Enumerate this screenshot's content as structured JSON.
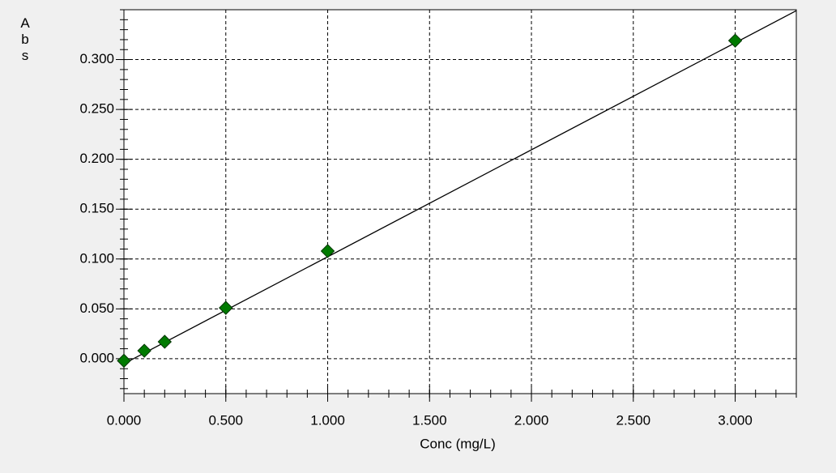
{
  "chart_data": {
    "type": "scatter",
    "x_label": "Conc (mg/L)",
    "y_label": "Abs",
    "x": [
      0,
      0.1,
      0.2,
      0.5,
      1.0,
      3.0
    ],
    "values": [
      -0.002,
      0.008,
      0.017,
      0.051,
      0.108,
      0.319
    ],
    "color": "#007a00",
    "fit_line": {
      "x": [
        0,
        3.3
      ],
      "values": [
        -0.005,
        0.349
      ],
      "color": "#000000"
    },
    "xlim": [
      0,
      3.3
    ],
    "ylim": [
      -0.035,
      0.35
    ],
    "xticks": [
      {
        "value": 0,
        "label": "0.000"
      },
      {
        "value": 0.5,
        "label": "0.500"
      },
      {
        "value": 1.0,
        "label": "1.000"
      },
      {
        "value": 1.5,
        "label": "1.500"
      },
      {
        "value": 2.0,
        "label": "2.000"
      },
      {
        "value": 2.5,
        "label": "2.500"
      },
      {
        "value": 3.0,
        "label": "3.000"
      }
    ],
    "yticks": [
      {
        "value": 0,
        "label": "0.000"
      },
      {
        "value": 0.05,
        "label": "0.050"
      },
      {
        "value": 0.1,
        "label": "0.100"
      },
      {
        "value": 0.15,
        "label": "0.150"
      },
      {
        "value": 0.2,
        "label": "0.200"
      },
      {
        "value": 0.25,
        "label": "0.250"
      },
      {
        "value": 0.3,
        "label": "0.300"
      }
    ],
    "minor_divisions": {
      "x": 5,
      "y": 5
    },
    "grid": true
  }
}
